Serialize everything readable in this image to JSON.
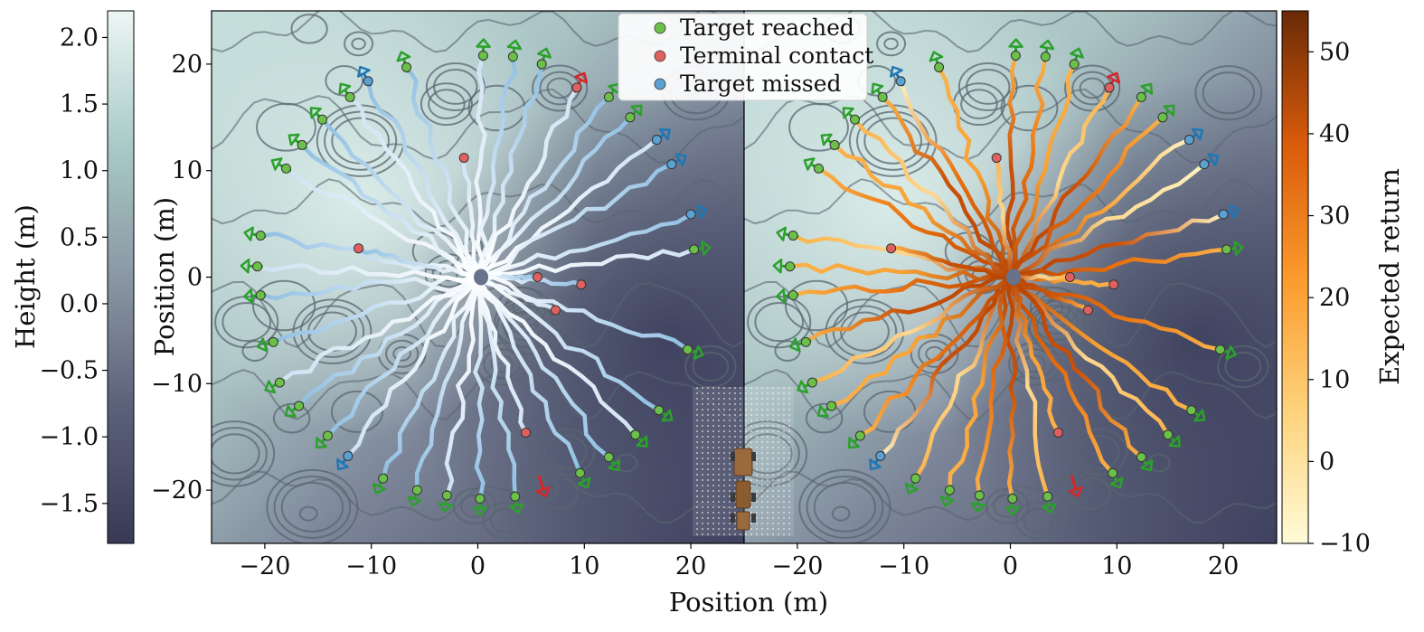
{
  "figure": {
    "xlabel": "Position (m)"
  },
  "colors": {
    "target_reached": "#2ca02c",
    "terminal_contact": "#d62728",
    "target_missed": "#1f77b4",
    "terrain_low": "#3f4260",
    "terrain_high": "#e8f3f1",
    "return_low": "#fffbd8",
    "return_high": "#6a2a06"
  },
  "legend": {
    "placement": "top-center",
    "items": [
      {
        "label": "Target reached",
        "color": "#2ca02c"
      },
      {
        "label": "Terminal contact",
        "color": "#d62728"
      },
      {
        "label": "Target missed",
        "color": "#1f77b4"
      }
    ]
  },
  "height_colorbar": {
    "label": "Height (m)",
    "range": [
      -1.8,
      2.2
    ],
    "ticks": [
      "2.0",
      "1.5",
      "1.0",
      "0.5",
      "0.0",
      "−0.5",
      "−1.0",
      "−1.5"
    ],
    "tick_values": [
      2.0,
      1.5,
      1.0,
      0.5,
      0.0,
      -0.5,
      -1.0,
      -1.5
    ]
  },
  "return_colorbar": {
    "label": "Expected return",
    "range": [
      -10,
      55
    ],
    "ticks": [
      "50",
      "40",
      "30",
      "20",
      "10",
      "0",
      "−10"
    ],
    "tick_values": [
      50,
      40,
      30,
      20,
      10,
      0,
      -10
    ]
  },
  "chart_data": {
    "type": "scatter",
    "x_range": [
      -25,
      25
    ],
    "y_range": [
      -25,
      25
    ],
    "ylabel": "Position (m)",
    "xtick_labels": [
      "−20",
      "−10",
      "0",
      "10",
      "20"
    ],
    "ytick_labels": [
      "20",
      "10",
      "0",
      "−10",
      "−20"
    ],
    "panels": [
      "height-colored trajectories",
      "expected-return-colored trajectories"
    ],
    "grid": false,
    "trajectory_endpoints": [
      {
        "x": 0.5,
        "y": 20.8,
        "outcome": "Target reached"
      },
      {
        "x": 3.3,
        "y": 20.7,
        "outcome": "Target reached"
      },
      {
        "x": 6.0,
        "y": 20.0,
        "outcome": "Target reached"
      },
      {
        "x": 9.3,
        "y": 17.8,
        "outcome": "Terminal contact"
      },
      {
        "x": 12.3,
        "y": 16.9,
        "outcome": "Target reached"
      },
      {
        "x": 14.3,
        "y": 15.0,
        "outcome": "Target reached"
      },
      {
        "x": 16.8,
        "y": 12.9,
        "outcome": "Target missed"
      },
      {
        "x": 18.2,
        "y": 10.6,
        "outcome": "Target missed"
      },
      {
        "x": 20.0,
        "y": 5.9,
        "outcome": "Target missed"
      },
      {
        "x": 20.3,
        "y": 2.6,
        "outcome": "Target reached"
      },
      {
        "x": 9.7,
        "y": -0.7,
        "outcome": "Terminal contact"
      },
      {
        "x": 5.6,
        "y": 0.0,
        "outcome": "Terminal contact"
      },
      {
        "x": 7.3,
        "y": -3.1,
        "outcome": "Terminal contact"
      },
      {
        "x": 19.7,
        "y": -6.8,
        "outcome": "Target reached"
      },
      {
        "x": 17.0,
        "y": -12.5,
        "outcome": "Target reached"
      },
      {
        "x": 14.8,
        "y": -14.8,
        "outcome": "Target reached"
      },
      {
        "x": 12.3,
        "y": -16.9,
        "outcome": "Target reached"
      },
      {
        "x": 9.6,
        "y": -18.4,
        "outcome": "Target reached"
      },
      {
        "x": 4.5,
        "y": -14.6,
        "outcome": "Terminal contact"
      },
      {
        "x": 3.5,
        "y": -20.6,
        "outcome": "Target reached"
      },
      {
        "x": 0.2,
        "y": -20.8,
        "outcome": "Target reached"
      },
      {
        "x": -2.9,
        "y": -20.5,
        "outcome": "Target reached"
      },
      {
        "x": -5.7,
        "y": -20.0,
        "outcome": "Target reached"
      },
      {
        "x": -8.9,
        "y": -18.9,
        "outcome": "Target reached"
      },
      {
        "x": -12.2,
        "y": -16.8,
        "outcome": "Target missed"
      },
      {
        "x": -14.1,
        "y": -14.9,
        "outcome": "Target reached"
      },
      {
        "x": -16.8,
        "y": -12.1,
        "outcome": "Target reached"
      },
      {
        "x": -18.6,
        "y": -9.9,
        "outcome": "Target reached"
      },
      {
        "x": -19.2,
        "y": -6.1,
        "outcome": "Target reached"
      },
      {
        "x": -20.4,
        "y": -1.7,
        "outcome": "Target reached"
      },
      {
        "x": -20.7,
        "y": 1.0,
        "outcome": "Target reached"
      },
      {
        "x": -20.4,
        "y": 3.9,
        "outcome": "Target reached"
      },
      {
        "x": -11.2,
        "y": 2.7,
        "outcome": "Terminal contact"
      },
      {
        "x": -18.0,
        "y": 10.2,
        "outcome": "Target reached"
      },
      {
        "x": -16.5,
        "y": 12.4,
        "outcome": "Target reached"
      },
      {
        "x": -14.6,
        "y": 14.8,
        "outcome": "Target reached"
      },
      {
        "x": -12.0,
        "y": 16.9,
        "outcome": "Target reached"
      },
      {
        "x": -10.3,
        "y": 18.4,
        "outcome": "Target missed"
      },
      {
        "x": -6.7,
        "y": 19.7,
        "outcome": "Target reached"
      },
      {
        "x": -1.3,
        "y": 11.2,
        "outcome": "Terminal contact"
      }
    ]
  }
}
